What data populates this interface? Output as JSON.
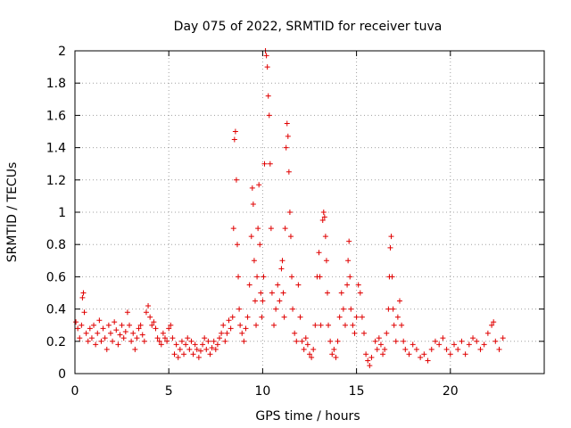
{
  "chart_data": {
    "type": "scatter",
    "title": "Day 075 of 2022, SRMTID for receiver tuva",
    "xlabel": "GPS time / hours",
    "ylabel": "SRMTID / TECUs",
    "xlim": [
      0,
      25
    ],
    "ylim": [
      0,
      2
    ],
    "xticks": [
      0,
      5,
      10,
      15,
      20
    ],
    "xtick_labels": [
      "0",
      "5",
      "10",
      "15",
      "20"
    ],
    "yticks": [
      0,
      0.2,
      0.4,
      0.6,
      0.8,
      1,
      1.2,
      1.4,
      1.6,
      1.8,
      2
    ],
    "ytick_labels": [
      "0",
      "0.2",
      "0.4",
      "0.6",
      "0.8",
      "1",
      "1.2",
      "1.4",
      "1.6",
      "1.8",
      "2"
    ],
    "grid": true,
    "marker": "+",
    "marker_color": "#e00000",
    "series": [
      {
        "name": "SRMTID",
        "points": [
          [
            0.05,
            0.32
          ],
          [
            0.15,
            0.28
          ],
          [
            0.25,
            0.22
          ],
          [
            0.35,
            0.3
          ],
          [
            0.4,
            0.47
          ],
          [
            0.45,
            0.5
          ],
          [
            0.5,
            0.38
          ],
          [
            0.6,
            0.25
          ],
          [
            0.7,
            0.2
          ],
          [
            0.8,
            0.28
          ],
          [
            0.9,
            0.22
          ],
          [
            1.0,
            0.3
          ],
          [
            1.1,
            0.18
          ],
          [
            1.2,
            0.25
          ],
          [
            1.3,
            0.33
          ],
          [
            1.4,
            0.2
          ],
          [
            1.5,
            0.28
          ],
          [
            1.6,
            0.22
          ],
          [
            1.7,
            0.15
          ],
          [
            1.8,
            0.3
          ],
          [
            1.9,
            0.25
          ],
          [
            2.0,
            0.2
          ],
          [
            2.1,
            0.32
          ],
          [
            2.2,
            0.27
          ],
          [
            2.3,
            0.18
          ],
          [
            2.4,
            0.24
          ],
          [
            2.5,
            0.3
          ],
          [
            2.6,
            0.22
          ],
          [
            2.7,
            0.26
          ],
          [
            2.8,
            0.38
          ],
          [
            2.9,
            0.3
          ],
          [
            3.0,
            0.2
          ],
          [
            3.1,
            0.25
          ],
          [
            3.2,
            0.15
          ],
          [
            3.3,
            0.22
          ],
          [
            3.4,
            0.28
          ],
          [
            3.5,
            0.3
          ],
          [
            3.6,
            0.24
          ],
          [
            3.7,
            0.2
          ],
          [
            3.8,
            0.38
          ],
          [
            3.9,
            0.42
          ],
          [
            4.0,
            0.35
          ],
          [
            4.1,
            0.3
          ],
          [
            4.2,
            0.32
          ],
          [
            4.3,
            0.28
          ],
          [
            4.4,
            0.22
          ],
          [
            4.5,
            0.2
          ],
          [
            4.6,
            0.18
          ],
          [
            4.7,
            0.25
          ],
          [
            4.8,
            0.22
          ],
          [
            4.9,
            0.2
          ],
          [
            5.0,
            0.28
          ],
          [
            5.1,
            0.3
          ],
          [
            5.2,
            0.22
          ],
          [
            5.3,
            0.12
          ],
          [
            5.4,
            0.18
          ],
          [
            5.5,
            0.1
          ],
          [
            5.6,
            0.15
          ],
          [
            5.7,
            0.2
          ],
          [
            5.8,
            0.12
          ],
          [
            5.9,
            0.18
          ],
          [
            6.0,
            0.22
          ],
          [
            6.1,
            0.15
          ],
          [
            6.2,
            0.2
          ],
          [
            6.3,
            0.12
          ],
          [
            6.4,
            0.18
          ],
          [
            6.5,
            0.15
          ],
          [
            6.6,
            0.1
          ],
          [
            6.7,
            0.14
          ],
          [
            6.8,
            0.18
          ],
          [
            6.9,
            0.22
          ],
          [
            7.0,
            0.15
          ],
          [
            7.1,
            0.2
          ],
          [
            7.2,
            0.12
          ],
          [
            7.3,
            0.16
          ],
          [
            7.4,
            0.2
          ],
          [
            7.5,
            0.15
          ],
          [
            7.6,
            0.18
          ],
          [
            7.7,
            0.22
          ],
          [
            7.8,
            0.25
          ],
          [
            7.9,
            0.3
          ],
          [
            8.0,
            0.2
          ],
          [
            8.1,
            0.25
          ],
          [
            8.2,
            0.33
          ],
          [
            8.3,
            0.28
          ],
          [
            8.4,
            0.35
          ],
          [
            8.45,
            0.9
          ],
          [
            8.5,
            1.45
          ],
          [
            8.55,
            1.5
          ],
          [
            8.6,
            1.2
          ],
          [
            8.65,
            0.8
          ],
          [
            8.7,
            0.6
          ],
          [
            8.75,
            0.4
          ],
          [
            8.8,
            0.3
          ],
          [
            8.9,
            0.25
          ],
          [
            9.0,
            0.2
          ],
          [
            9.1,
            0.28
          ],
          [
            9.2,
            0.35
          ],
          [
            9.3,
            0.55
          ],
          [
            9.4,
            0.85
          ],
          [
            9.45,
            1.15
          ],
          [
            9.5,
            1.05
          ],
          [
            9.55,
            0.7
          ],
          [
            9.6,
            0.45
          ],
          [
            9.65,
            0.3
          ],
          [
            9.7,
            0.6
          ],
          [
            9.75,
            0.9
          ],
          [
            9.8,
            1.17
          ],
          [
            9.85,
            0.8
          ],
          [
            9.9,
            0.5
          ],
          [
            9.95,
            0.35
          ],
          [
            10.0,
            0.45
          ],
          [
            10.05,
            0.6
          ],
          [
            10.1,
            1.3
          ],
          [
            10.15,
            2.0
          ],
          [
            10.2,
            1.97
          ],
          [
            10.25,
            1.9
          ],
          [
            10.3,
            1.72
          ],
          [
            10.35,
            1.6
          ],
          [
            10.4,
            1.3
          ],
          [
            10.45,
            0.9
          ],
          [
            10.5,
            0.5
          ],
          [
            10.6,
            0.3
          ],
          [
            10.7,
            0.4
          ],
          [
            10.8,
            0.55
          ],
          [
            10.9,
            0.45
          ],
          [
            11.0,
            0.65
          ],
          [
            11.05,
            0.7
          ],
          [
            11.1,
            0.5
          ],
          [
            11.15,
            0.35
          ],
          [
            11.2,
            0.9
          ],
          [
            11.25,
            1.4
          ],
          [
            11.3,
            1.55
          ],
          [
            11.35,
            1.47
          ],
          [
            11.4,
            1.25
          ],
          [
            11.45,
            1.0
          ],
          [
            11.5,
            0.85
          ],
          [
            11.55,
            0.6
          ],
          [
            11.6,
            0.4
          ],
          [
            11.7,
            0.25
          ],
          [
            11.8,
            0.2
          ],
          [
            11.9,
            0.55
          ],
          [
            12.0,
            0.35
          ],
          [
            12.1,
            0.2
          ],
          [
            12.2,
            0.15
          ],
          [
            12.3,
            0.22
          ],
          [
            12.4,
            0.18
          ],
          [
            12.5,
            0.12
          ],
          [
            12.6,
            0.1
          ],
          [
            12.7,
            0.15
          ],
          [
            12.8,
            0.3
          ],
          [
            12.9,
            0.6
          ],
          [
            13.0,
            0.75
          ],
          [
            13.05,
            0.6
          ],
          [
            13.1,
            0.3
          ],
          [
            13.2,
            0.95
          ],
          [
            13.25,
            1.0
          ],
          [
            13.3,
            0.97
          ],
          [
            13.35,
            0.85
          ],
          [
            13.4,
            0.7
          ],
          [
            13.45,
            0.5
          ],
          [
            13.5,
            0.3
          ],
          [
            13.6,
            0.2
          ],
          [
            13.7,
            0.12
          ],
          [
            13.8,
            0.15
          ],
          [
            13.9,
            0.1
          ],
          [
            14.0,
            0.2
          ],
          [
            14.1,
            0.35
          ],
          [
            14.2,
            0.5
          ],
          [
            14.3,
            0.4
          ],
          [
            14.4,
            0.3
          ],
          [
            14.5,
            0.55
          ],
          [
            14.55,
            0.7
          ],
          [
            14.6,
            0.82
          ],
          [
            14.65,
            0.6
          ],
          [
            14.7,
            0.4
          ],
          [
            14.8,
            0.3
          ],
          [
            14.9,
            0.25
          ],
          [
            15.0,
            0.35
          ],
          [
            15.1,
            0.55
          ],
          [
            15.2,
            0.5
          ],
          [
            15.3,
            0.35
          ],
          [
            15.4,
            0.25
          ],
          [
            15.5,
            0.12
          ],
          [
            15.6,
            0.08
          ],
          [
            15.7,
            0.05
          ],
          [
            15.8,
            0.1
          ],
          [
            16.0,
            0.2
          ],
          [
            16.1,
            0.15
          ],
          [
            16.2,
            0.22
          ],
          [
            16.3,
            0.18
          ],
          [
            16.4,
            0.12
          ],
          [
            16.5,
            0.15
          ],
          [
            16.6,
            0.25
          ],
          [
            16.7,
            0.4
          ],
          [
            16.75,
            0.6
          ],
          [
            16.8,
            0.78
          ],
          [
            16.85,
            0.85
          ],
          [
            16.9,
            0.6
          ],
          [
            16.95,
            0.4
          ],
          [
            17.0,
            0.3
          ],
          [
            17.1,
            0.2
          ],
          [
            17.2,
            0.35
          ],
          [
            17.3,
            0.45
          ],
          [
            17.4,
            0.3
          ],
          [
            17.5,
            0.2
          ],
          [
            17.6,
            0.15
          ],
          [
            17.8,
            0.12
          ],
          [
            18.0,
            0.18
          ],
          [
            18.2,
            0.15
          ],
          [
            18.4,
            0.1
          ],
          [
            18.6,
            0.12
          ],
          [
            18.8,
            0.08
          ],
          [
            19.0,
            0.15
          ],
          [
            19.2,
            0.2
          ],
          [
            19.4,
            0.18
          ],
          [
            19.6,
            0.22
          ],
          [
            19.8,
            0.15
          ],
          [
            20.0,
            0.12
          ],
          [
            20.2,
            0.18
          ],
          [
            20.4,
            0.15
          ],
          [
            20.6,
            0.2
          ],
          [
            20.8,
            0.12
          ],
          [
            21.0,
            0.18
          ],
          [
            21.2,
            0.22
          ],
          [
            21.4,
            0.2
          ],
          [
            21.6,
            0.15
          ],
          [
            21.8,
            0.18
          ],
          [
            22.0,
            0.25
          ],
          [
            22.2,
            0.3
          ],
          [
            22.3,
            0.32
          ],
          [
            22.4,
            0.2
          ],
          [
            22.6,
            0.15
          ],
          [
            22.8,
            0.22
          ]
        ]
      }
    ]
  }
}
